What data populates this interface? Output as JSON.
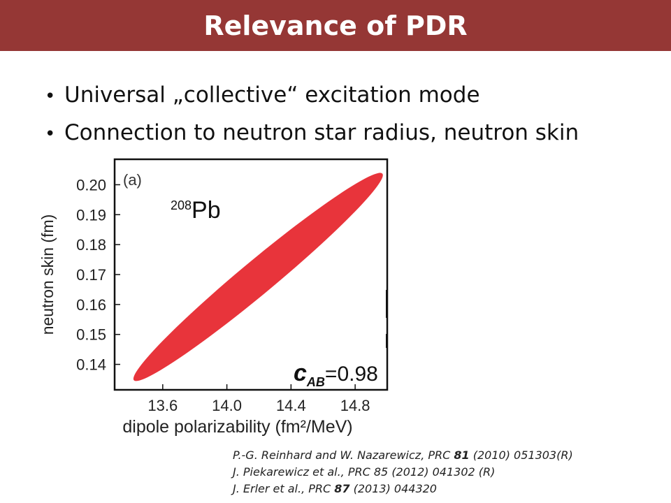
{
  "slide": {
    "title": "Relevance of PDR",
    "bullets": [
      "Universal „collective“ excitation mode",
      "Connection to neutron star radius, neutron skin"
    ],
    "references": [
      {
        "pre": "P.-G. Reinhard and W. Nazarewicz, PRC ",
        "vol": "81",
        "post": " (2010) 051303(R)"
      },
      {
        "pre": "J. Piekarewicz et al., PRC 85 (2012) 041302 (R)",
        "vol": "",
        "post": ""
      },
      {
        "pre": "J. Erler et al., PRC ",
        "vol": "87",
        "post": " (2013) 044320"
      }
    ],
    "colors": {
      "title_bg": "#953735",
      "ellipse": "#e8343b"
    }
  },
  "chart_data": {
    "type": "scatter",
    "panel_label": "(a)",
    "nucleus_mass": "208",
    "nucleus_symbol": "Pb",
    "xlabel": "dipole polarizability (fm²/MeV)",
    "ylabel": "neutron skin (fm)",
    "xlim": [
      13.3,
      15.0
    ],
    "ylim": [
      0.1315,
      0.2085
    ],
    "x_ticks": [
      {
        "value": 13.6,
        "label": "13.6"
      },
      {
        "value": 14.0,
        "label": "14.0"
      },
      {
        "value": 14.4,
        "label": "14.4"
      },
      {
        "value": 14.8,
        "label": "14.8"
      }
    ],
    "y_ticks": [
      {
        "value": 0.14,
        "label": "0.14"
      },
      {
        "value": 0.15,
        "label": "0.15"
      },
      {
        "value": 0.16,
        "label": "0.16"
      },
      {
        "value": 0.17,
        "label": "0.17"
      },
      {
        "value": 0.18,
        "label": "0.18"
      },
      {
        "value": 0.19,
        "label": "0.19"
      },
      {
        "value": 0.2,
        "label": "0.20"
      }
    ],
    "correlation": {
      "symbol": "c",
      "subscript": "AB",
      "value": "=0.98"
    },
    "region": {
      "shape": "ellipse",
      "end_a": {
        "x": 13.42,
        "y": 0.1347
      },
      "end_b": {
        "x": 14.97,
        "y": 0.2037
      },
      "center": {
        "x": 14.195,
        "y": 0.1692
      }
    }
  }
}
